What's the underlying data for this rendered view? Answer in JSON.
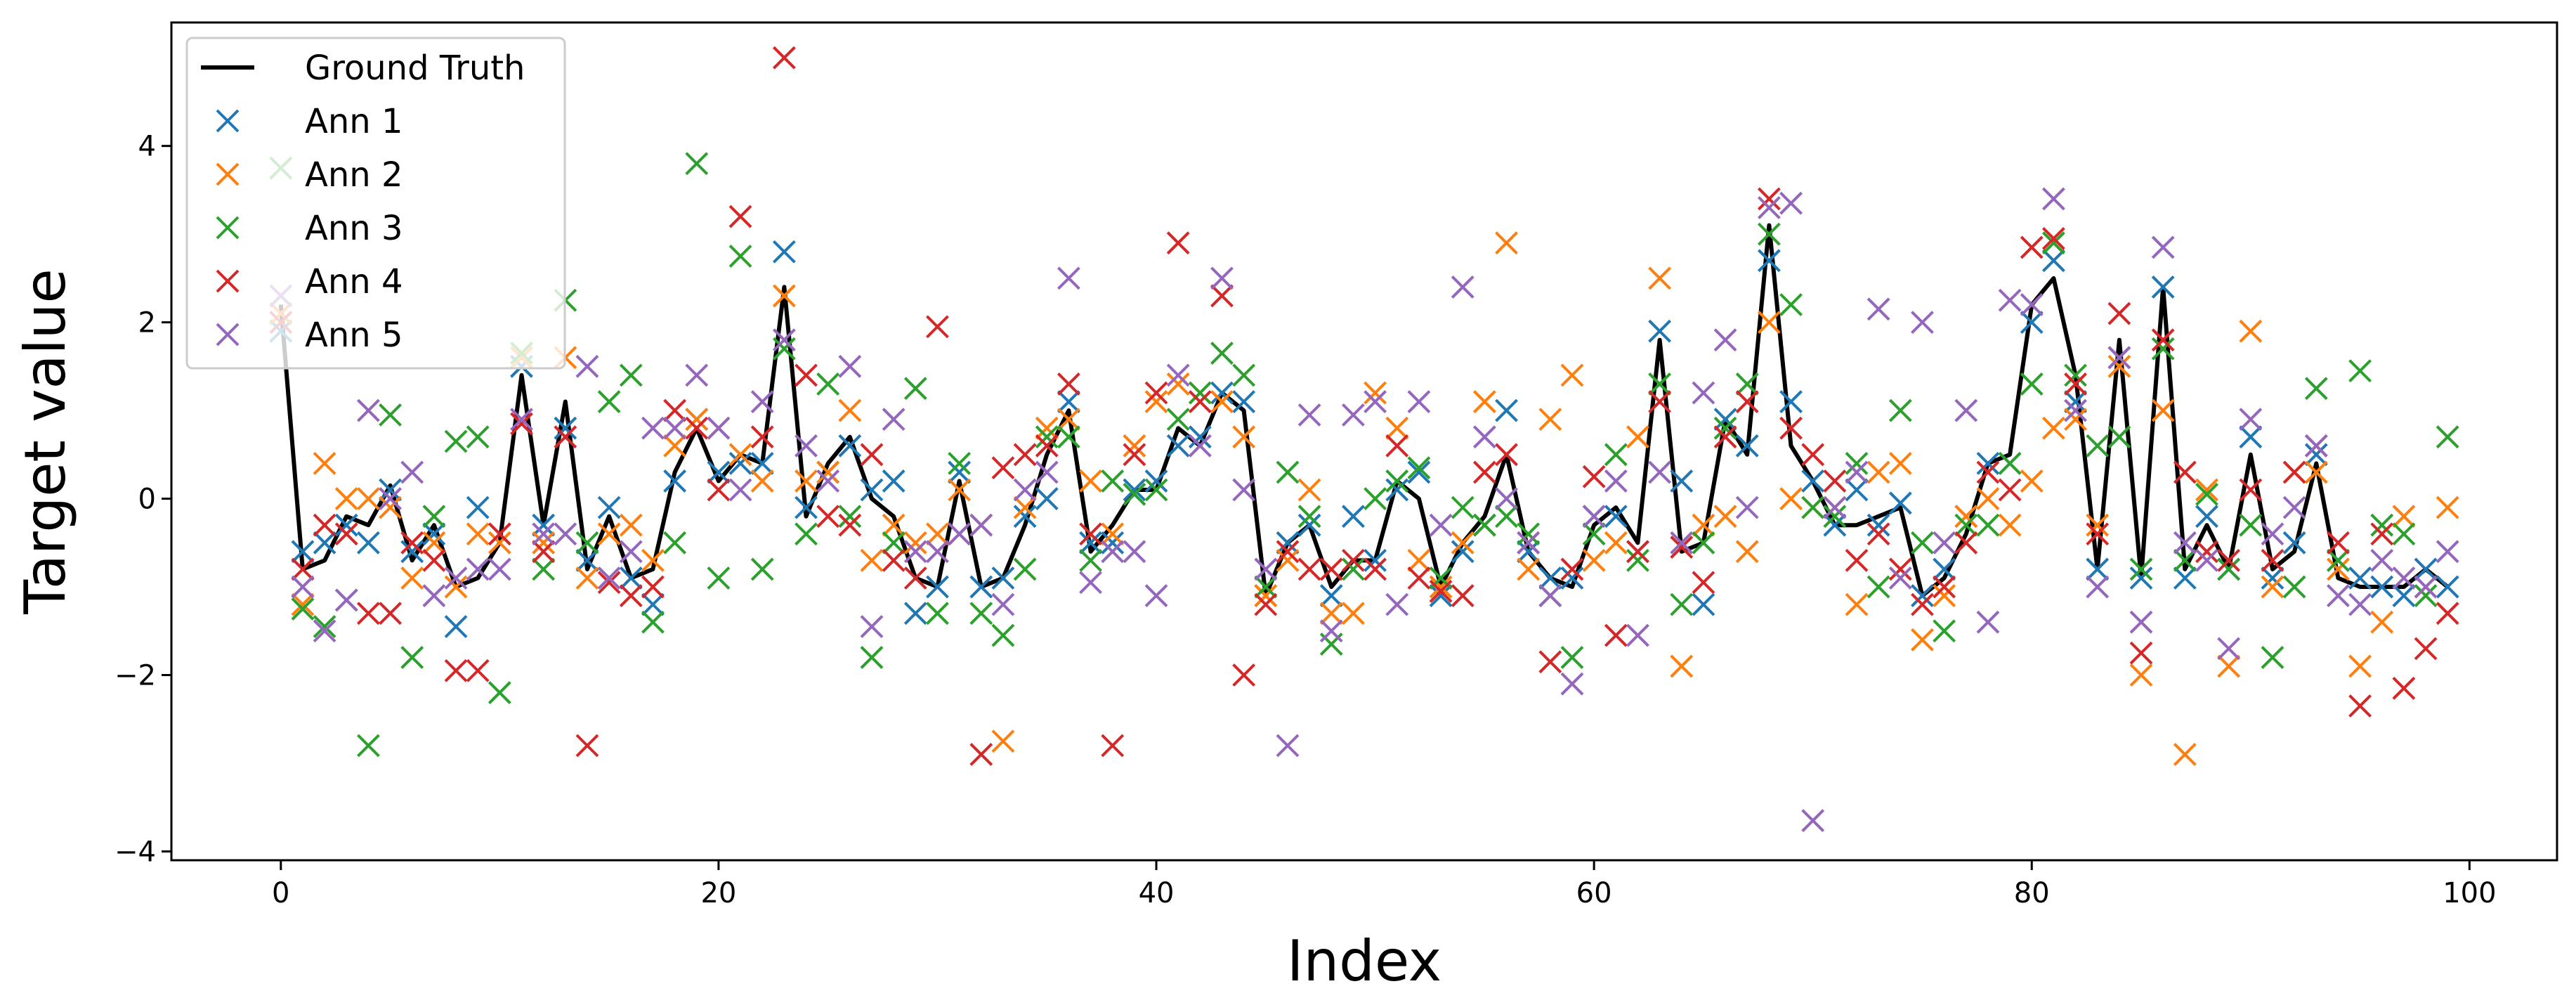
{
  "chart_data": {
    "type": "line",
    "title": "",
    "xlabel": "Index",
    "ylabel": "Target value",
    "xlim": [
      -5,
      104
    ],
    "ylim": [
      -4.1,
      5.4
    ],
    "xticks": [
      0,
      20,
      40,
      60,
      80,
      100
    ],
    "yticks": [
      -4,
      -2,
      0,
      2,
      4
    ],
    "xtick_labels": [
      "0",
      "20",
      "40",
      "60",
      "80",
      "100"
    ],
    "ytick_labels": [
      "−4",
      "−2",
      "0",
      "2",
      "4"
    ],
    "grid": false,
    "legend": "top-left",
    "series": [
      {
        "name": "Ground Truth",
        "kind": "line",
        "color": "#000000",
        "x": [
          0,
          1,
          2,
          3,
          4,
          5,
          6,
          7,
          8,
          9,
          10,
          11,
          12,
          13,
          14,
          15,
          16,
          17,
          18,
          19,
          20,
          21,
          22,
          23,
          24,
          25,
          26,
          27,
          28,
          29,
          30,
          31,
          32,
          33,
          34,
          35,
          36,
          37,
          38,
          39,
          40,
          41,
          42,
          43,
          44,
          45,
          46,
          47,
          48,
          49,
          50,
          51,
          52,
          53,
          54,
          55,
          56,
          57,
          58,
          59,
          60,
          61,
          62,
          63,
          64,
          65,
          66,
          67,
          68,
          69,
          70,
          71,
          72,
          73,
          74,
          75,
          76,
          77,
          78,
          79,
          80,
          81,
          82,
          83,
          84,
          85,
          86,
          87,
          88,
          89,
          90,
          91,
          92,
          93,
          94,
          95,
          96,
          97,
          98,
          99
        ],
        "y": [
          2.2,
          -0.8,
          -0.7,
          -0.2,
          -0.3,
          0.15,
          -0.7,
          -0.3,
          -1.0,
          -0.9,
          -0.5,
          1.4,
          -0.3,
          1.1,
          -0.8,
          -0.2,
          -0.9,
          -0.8,
          0.3,
          0.8,
          0.2,
          0.5,
          0.4,
          2.4,
          -0.2,
          0.4,
          0.7,
          0.0,
          -0.2,
          -0.9,
          -1.0,
          0.2,
          -1.0,
          -0.9,
          -0.3,
          0.5,
          1.0,
          -0.6,
          -0.3,
          0.1,
          0.1,
          0.8,
          0.6,
          1.2,
          1.0,
          -1.1,
          -0.5,
          -0.3,
          -1.0,
          -0.7,
          -0.7,
          0.2,
          0.0,
          -1.0,
          -0.5,
          -0.2,
          0.5,
          -0.6,
          -0.9,
          -1.0,
          -0.3,
          -0.1,
          -0.5,
          1.8,
          -0.6,
          -0.5,
          0.9,
          0.5,
          3.1,
          0.6,
          0.2,
          -0.3,
          -0.3,
          -0.2,
          -0.1,
          -1.1,
          -0.9,
          -0.4,
          0.4,
          0.5,
          2.2,
          2.5,
          1.4,
          -0.8,
          1.8,
          -0.9,
          2.4,
          -0.8,
          -0.3,
          -0.8,
          0.5,
          -0.8,
          -0.6,
          0.4,
          -0.9,
          -1.0,
          -1.0,
          -1.0,
          -0.8,
          -1.0
        ]
      },
      {
        "name": "Ann 1",
        "kind": "scatter",
        "color": "#1f77b4",
        "x": [
          0,
          1,
          2,
          3,
          4,
          5,
          6,
          7,
          8,
          9,
          10,
          11,
          12,
          13,
          14,
          15,
          16,
          17,
          18,
          19,
          20,
          21,
          22,
          23,
          24,
          25,
          26,
          27,
          28,
          29,
          30,
          31,
          32,
          33,
          34,
          35,
          36,
          37,
          38,
          39,
          40,
          41,
          42,
          43,
          44,
          45,
          46,
          47,
          48,
          49,
          50,
          51,
          52,
          53,
          54,
          55,
          56,
          57,
          58,
          59,
          60,
          61,
          62,
          63,
          64,
          65,
          66,
          67,
          68,
          69,
          70,
          71,
          72,
          73,
          74,
          75,
          76,
          77,
          78,
          79,
          80,
          81,
          82,
          83,
          84,
          85,
          86,
          87,
          88,
          89,
          90,
          91,
          92,
          93,
          94,
          95,
          96,
          97,
          98,
          99
        ],
        "y": [
          1.9,
          -0.6,
          -0.5,
          -0.3,
          -0.5,
          0.1,
          -0.6,
          -0.4,
          -1.45,
          -0.1,
          -0.4,
          1.5,
          -0.3,
          0.8,
          -0.7,
          -0.1,
          -0.9,
          -1.2,
          0.2,
          0.9,
          0.3,
          0.4,
          0.4,
          2.8,
          -0.1,
          0.3,
          0.6,
          0.1,
          0.2,
          -1.3,
          -1.0,
          0.3,
          -1.0,
          -0.9,
          -0.2,
          0.0,
          1.1,
          -0.5,
          -0.5,
          0.1,
          0.2,
          0.6,
          0.7,
          1.2,
          1.1,
          -1.1,
          -0.5,
          -0.3,
          -1.1,
          -0.2,
          -0.7,
          0.1,
          0.3,
          -1.1,
          -0.6,
          -0.3,
          1.0,
          -0.6,
          -0.9,
          -0.9,
          -0.2,
          -0.2,
          -0.6,
          1.9,
          0.2,
          -1.2,
          0.9,
          0.6,
          2.7,
          1.1,
          0.2,
          -0.3,
          0.1,
          -0.3,
          -0.05,
          -1.1,
          -0.8,
          -0.2,
          0.4,
          0.4,
          2.0,
          2.7,
          1.1,
          -0.8,
          1.6,
          -0.9,
          2.4,
          -0.9,
          -0.2,
          -0.8,
          0.7,
          -0.9,
          -0.5,
          0.5,
          -0.7,
          -0.9,
          -1.0,
          -1.1,
          -0.8,
          -1.0
        ]
      },
      {
        "name": "Ann 2",
        "kind": "scatter",
        "color": "#ff7f0e",
        "x": [
          0,
          1,
          2,
          3,
          4,
          5,
          6,
          7,
          8,
          9,
          10,
          11,
          12,
          13,
          14,
          15,
          16,
          17,
          18,
          19,
          20,
          21,
          22,
          23,
          24,
          25,
          26,
          27,
          28,
          29,
          30,
          31,
          32,
          33,
          34,
          35,
          36,
          37,
          38,
          39,
          40,
          41,
          42,
          43,
          44,
          45,
          46,
          47,
          48,
          49,
          50,
          51,
          52,
          53,
          54,
          55,
          56,
          57,
          58,
          59,
          60,
          61,
          62,
          63,
          64,
          65,
          66,
          67,
          68,
          69,
          70,
          71,
          72,
          73,
          74,
          75,
          76,
          77,
          78,
          79,
          80,
          81,
          82,
          83,
          84,
          85,
          86,
          87,
          88,
          89,
          90,
          91,
          92,
          93,
          94,
          95,
          96,
          97,
          98,
          99
        ],
        "y": [
          2.1,
          -1.2,
          0.4,
          0.0,
          0.0,
          -0.1,
          -0.9,
          -0.5,
          -1.0,
          -0.4,
          -0.5,
          1.6,
          -0.5,
          1.6,
          -0.9,
          -0.4,
          -0.3,
          -0.7,
          0.6,
          0.9,
          0.8,
          0.5,
          0.2,
          2.3,
          0.2,
          0.3,
          1.0,
          -0.7,
          -0.3,
          -0.5,
          -0.4,
          0.1,
          -0.3,
          -2.75,
          -0.1,
          0.8,
          0.9,
          0.2,
          -0.4,
          0.6,
          1.1,
          1.3,
          1.2,
          1.1,
          0.7,
          -1.1,
          -0.7,
          0.1,
          -1.3,
          -1.3,
          1.2,
          0.8,
          -0.7,
          -1.0,
          -0.5,
          1.1,
          2.9,
          -0.8,
          0.9,
          1.4,
          -0.7,
          -0.5,
          0.7,
          2.5,
          -1.9,
          -0.3,
          -0.2,
          -0.6,
          2.0,
          0.0,
          -0.1,
          -0.1,
          -1.2,
          0.3,
          0.4,
          -1.6,
          -1.1,
          -0.2,
          0.0,
          -0.3,
          0.2,
          0.8,
          0.9,
          -0.3,
          1.5,
          -2.0,
          1.0,
          -2.9,
          0.1,
          -1.9,
          1.9,
          -1.0,
          0.3,
          0.3,
          -0.8,
          -1.9,
          -1.4,
          -0.2,
          -1.0,
          -0.1
        ]
      },
      {
        "name": "Ann 3",
        "kind": "scatter",
        "color": "#2ca02c",
        "x": [
          0,
          1,
          2,
          3,
          4,
          5,
          6,
          7,
          8,
          9,
          10,
          11,
          12,
          13,
          14,
          15,
          16,
          17,
          18,
          19,
          20,
          21,
          22,
          23,
          24,
          25,
          26,
          27,
          28,
          29,
          30,
          31,
          32,
          33,
          34,
          35,
          36,
          37,
          38,
          39,
          40,
          41,
          42,
          43,
          44,
          45,
          46,
          47,
          48,
          49,
          50,
          51,
          52,
          53,
          54,
          55,
          56,
          57,
          58,
          59,
          60,
          61,
          62,
          63,
          64,
          65,
          66,
          67,
          68,
          69,
          70,
          71,
          72,
          73,
          74,
          75,
          76,
          77,
          78,
          79,
          80,
          81,
          82,
          83,
          84,
          85,
          86,
          87,
          88,
          89,
          90,
          91,
          92,
          93,
          94,
          95,
          96,
          97,
          98,
          99
        ],
        "y": [
          3.75,
          -1.25,
          -1.45,
          -1.15,
          -2.8,
          0.95,
          -1.8,
          -0.2,
          0.65,
          0.7,
          -2.2,
          1.65,
          -0.8,
          2.25,
          -0.5,
          1.1,
          1.4,
          -1.4,
          -0.5,
          3.8,
          -0.9,
          2.75,
          -0.8,
          1.7,
          -0.4,
          1.3,
          -0.2,
          -1.8,
          -0.5,
          1.25,
          -1.3,
          0.4,
          -1.3,
          -1.55,
          -0.8,
          0.7,
          0.7,
          -0.7,
          0.2,
          0.05,
          0.1,
          0.9,
          1.2,
          1.65,
          1.4,
          -1.0,
          0.3,
          -0.2,
          -1.65,
          -0.8,
          0.0,
          0.2,
          0.35,
          -0.9,
          -0.1,
          -0.3,
          -0.2,
          -0.4,
          -1.1,
          -1.8,
          -0.4,
          0.5,
          -0.7,
          1.3,
          -1.2,
          -0.5,
          0.8,
          1.3,
          3.0,
          2.2,
          -0.1,
          -0.2,
          0.4,
          -1.0,
          1.0,
          -0.5,
          -1.5,
          -0.3,
          -0.3,
          0.4,
          1.3,
          2.9,
          1.4,
          0.6,
          0.7,
          -0.8,
          1.7,
          -0.7,
          0.05,
          -0.8,
          -0.3,
          -1.8,
          -1.0,
          1.25,
          -0.7,
          1.45,
          -0.3,
          -0.4,
          -1.1,
          0.7
        ]
      },
      {
        "name": "Ann 4",
        "kind": "scatter",
        "color": "#d62728",
        "x": [
          0,
          1,
          2,
          3,
          4,
          5,
          6,
          7,
          8,
          9,
          10,
          11,
          12,
          13,
          14,
          15,
          16,
          17,
          18,
          19,
          20,
          21,
          22,
          23,
          24,
          25,
          26,
          27,
          28,
          29,
          30,
          31,
          32,
          33,
          34,
          35,
          36,
          37,
          38,
          39,
          40,
          41,
          42,
          43,
          44,
          45,
          46,
          47,
          48,
          49,
          50,
          51,
          52,
          53,
          54,
          55,
          56,
          57,
          58,
          59,
          60,
          61,
          62,
          63,
          64,
          65,
          66,
          67,
          68,
          69,
          70,
          71,
          72,
          73,
          74,
          75,
          76,
          77,
          78,
          79,
          80,
          81,
          82,
          83,
          84,
          85,
          86,
          87,
          88,
          89,
          90,
          91,
          92,
          93,
          94,
          95,
          96,
          97,
          98,
          99
        ],
        "y": [
          2.0,
          -0.8,
          -0.3,
          -0.4,
          -1.3,
          -1.3,
          -0.5,
          -0.7,
          -1.95,
          -1.95,
          -0.4,
          0.85,
          -0.6,
          0.7,
          -2.8,
          -0.95,
          -1.1,
          -1.0,
          1.0,
          0.8,
          0.1,
          3.2,
          0.7,
          5.0,
          1.4,
          -0.2,
          -0.3,
          0.5,
          -0.7,
          -0.9,
          1.95,
          -0.4,
          -2.9,
          0.35,
          0.5,
          0.6,
          1.3,
          -0.4,
          -2.8,
          0.5,
          1.2,
          2.9,
          1.1,
          2.3,
          -2.0,
          -1.2,
          -0.6,
          -0.8,
          -0.8,
          -0.7,
          -0.8,
          0.6,
          -0.9,
          -1.05,
          -1.1,
          0.3,
          0.5,
          -0.5,
          -1.85,
          -0.8,
          0.25,
          -1.55,
          -0.6,
          1.1,
          -0.55,
          -0.95,
          0.7,
          1.1,
          3.4,
          0.8,
          0.5,
          0.2,
          -0.7,
          -0.4,
          -0.8,
          -1.2,
          -1.0,
          -0.5,
          0.3,
          0.1,
          2.85,
          2.95,
          1.3,
          -0.4,
          2.1,
          -1.75,
          1.8,
          0.3,
          -0.6,
          -0.7,
          0.1,
          -0.7,
          0.3,
          0.6,
          -0.5,
          -2.35,
          -0.4,
          -2.15,
          -1.7,
          -1.3
        ]
      },
      {
        "name": "Ann 5",
        "kind": "scatter",
        "color": "#9467bd",
        "x": [
          0,
          1,
          2,
          3,
          4,
          5,
          6,
          7,
          8,
          9,
          10,
          11,
          12,
          13,
          14,
          15,
          16,
          17,
          18,
          19,
          20,
          21,
          22,
          23,
          24,
          25,
          26,
          27,
          28,
          29,
          30,
          31,
          32,
          33,
          34,
          35,
          36,
          37,
          38,
          39,
          40,
          41,
          42,
          43,
          44,
          45,
          46,
          47,
          48,
          49,
          50,
          51,
          52,
          53,
          54,
          55,
          56,
          57,
          58,
          59,
          60,
          61,
          62,
          63,
          64,
          65,
          66,
          67,
          68,
          69,
          70,
          71,
          72,
          73,
          74,
          75,
          76,
          77,
          78,
          79,
          80,
          81,
          82,
          83,
          84,
          85,
          86,
          87,
          88,
          89,
          90,
          91,
          92,
          93,
          94,
          95,
          96,
          97,
          98,
          99
        ],
        "y": [
          2.3,
          -1.0,
          -1.5,
          -1.15,
          1.0,
          0.0,
          0.3,
          -1.1,
          -0.9,
          -0.8,
          -0.8,
          0.9,
          -0.4,
          -0.4,
          1.5,
          -0.9,
          -0.6,
          0.8,
          0.8,
          1.4,
          0.8,
          0.1,
          1.1,
          1.8,
          0.6,
          0.2,
          1.5,
          -1.45,
          0.9,
          -0.6,
          -0.6,
          -0.4,
          -0.3,
          -1.2,
          0.1,
          0.3,
          2.5,
          -0.95,
          -0.6,
          -0.6,
          -1.1,
          1.4,
          0.6,
          2.5,
          0.1,
          -0.8,
          -2.8,
          0.95,
          -1.5,
          0.95,
          1.1,
          -1.2,
          1.1,
          -0.3,
          2.4,
          0.7,
          0.0,
          -0.5,
          -1.1,
          -2.1,
          -0.2,
          0.2,
          -1.55,
          0.3,
          -0.5,
          1.2,
          1.8,
          -0.1,
          3.3,
          3.35,
          -3.65,
          -0.1,
          0.3,
          2.15,
          -0.9,
          2.0,
          -0.5,
          1.0,
          -1.4,
          2.25,
          2.2,
          3.4,
          1.0,
          -1.0,
          1.6,
          -1.4,
          2.85,
          -0.5,
          -0.7,
          -1.7,
          0.9,
          -0.4,
          -0.1,
          0.6,
          -1.1,
          -1.2,
          -0.7,
          -0.9,
          -1.0,
          -0.6
        ]
      }
    ]
  }
}
